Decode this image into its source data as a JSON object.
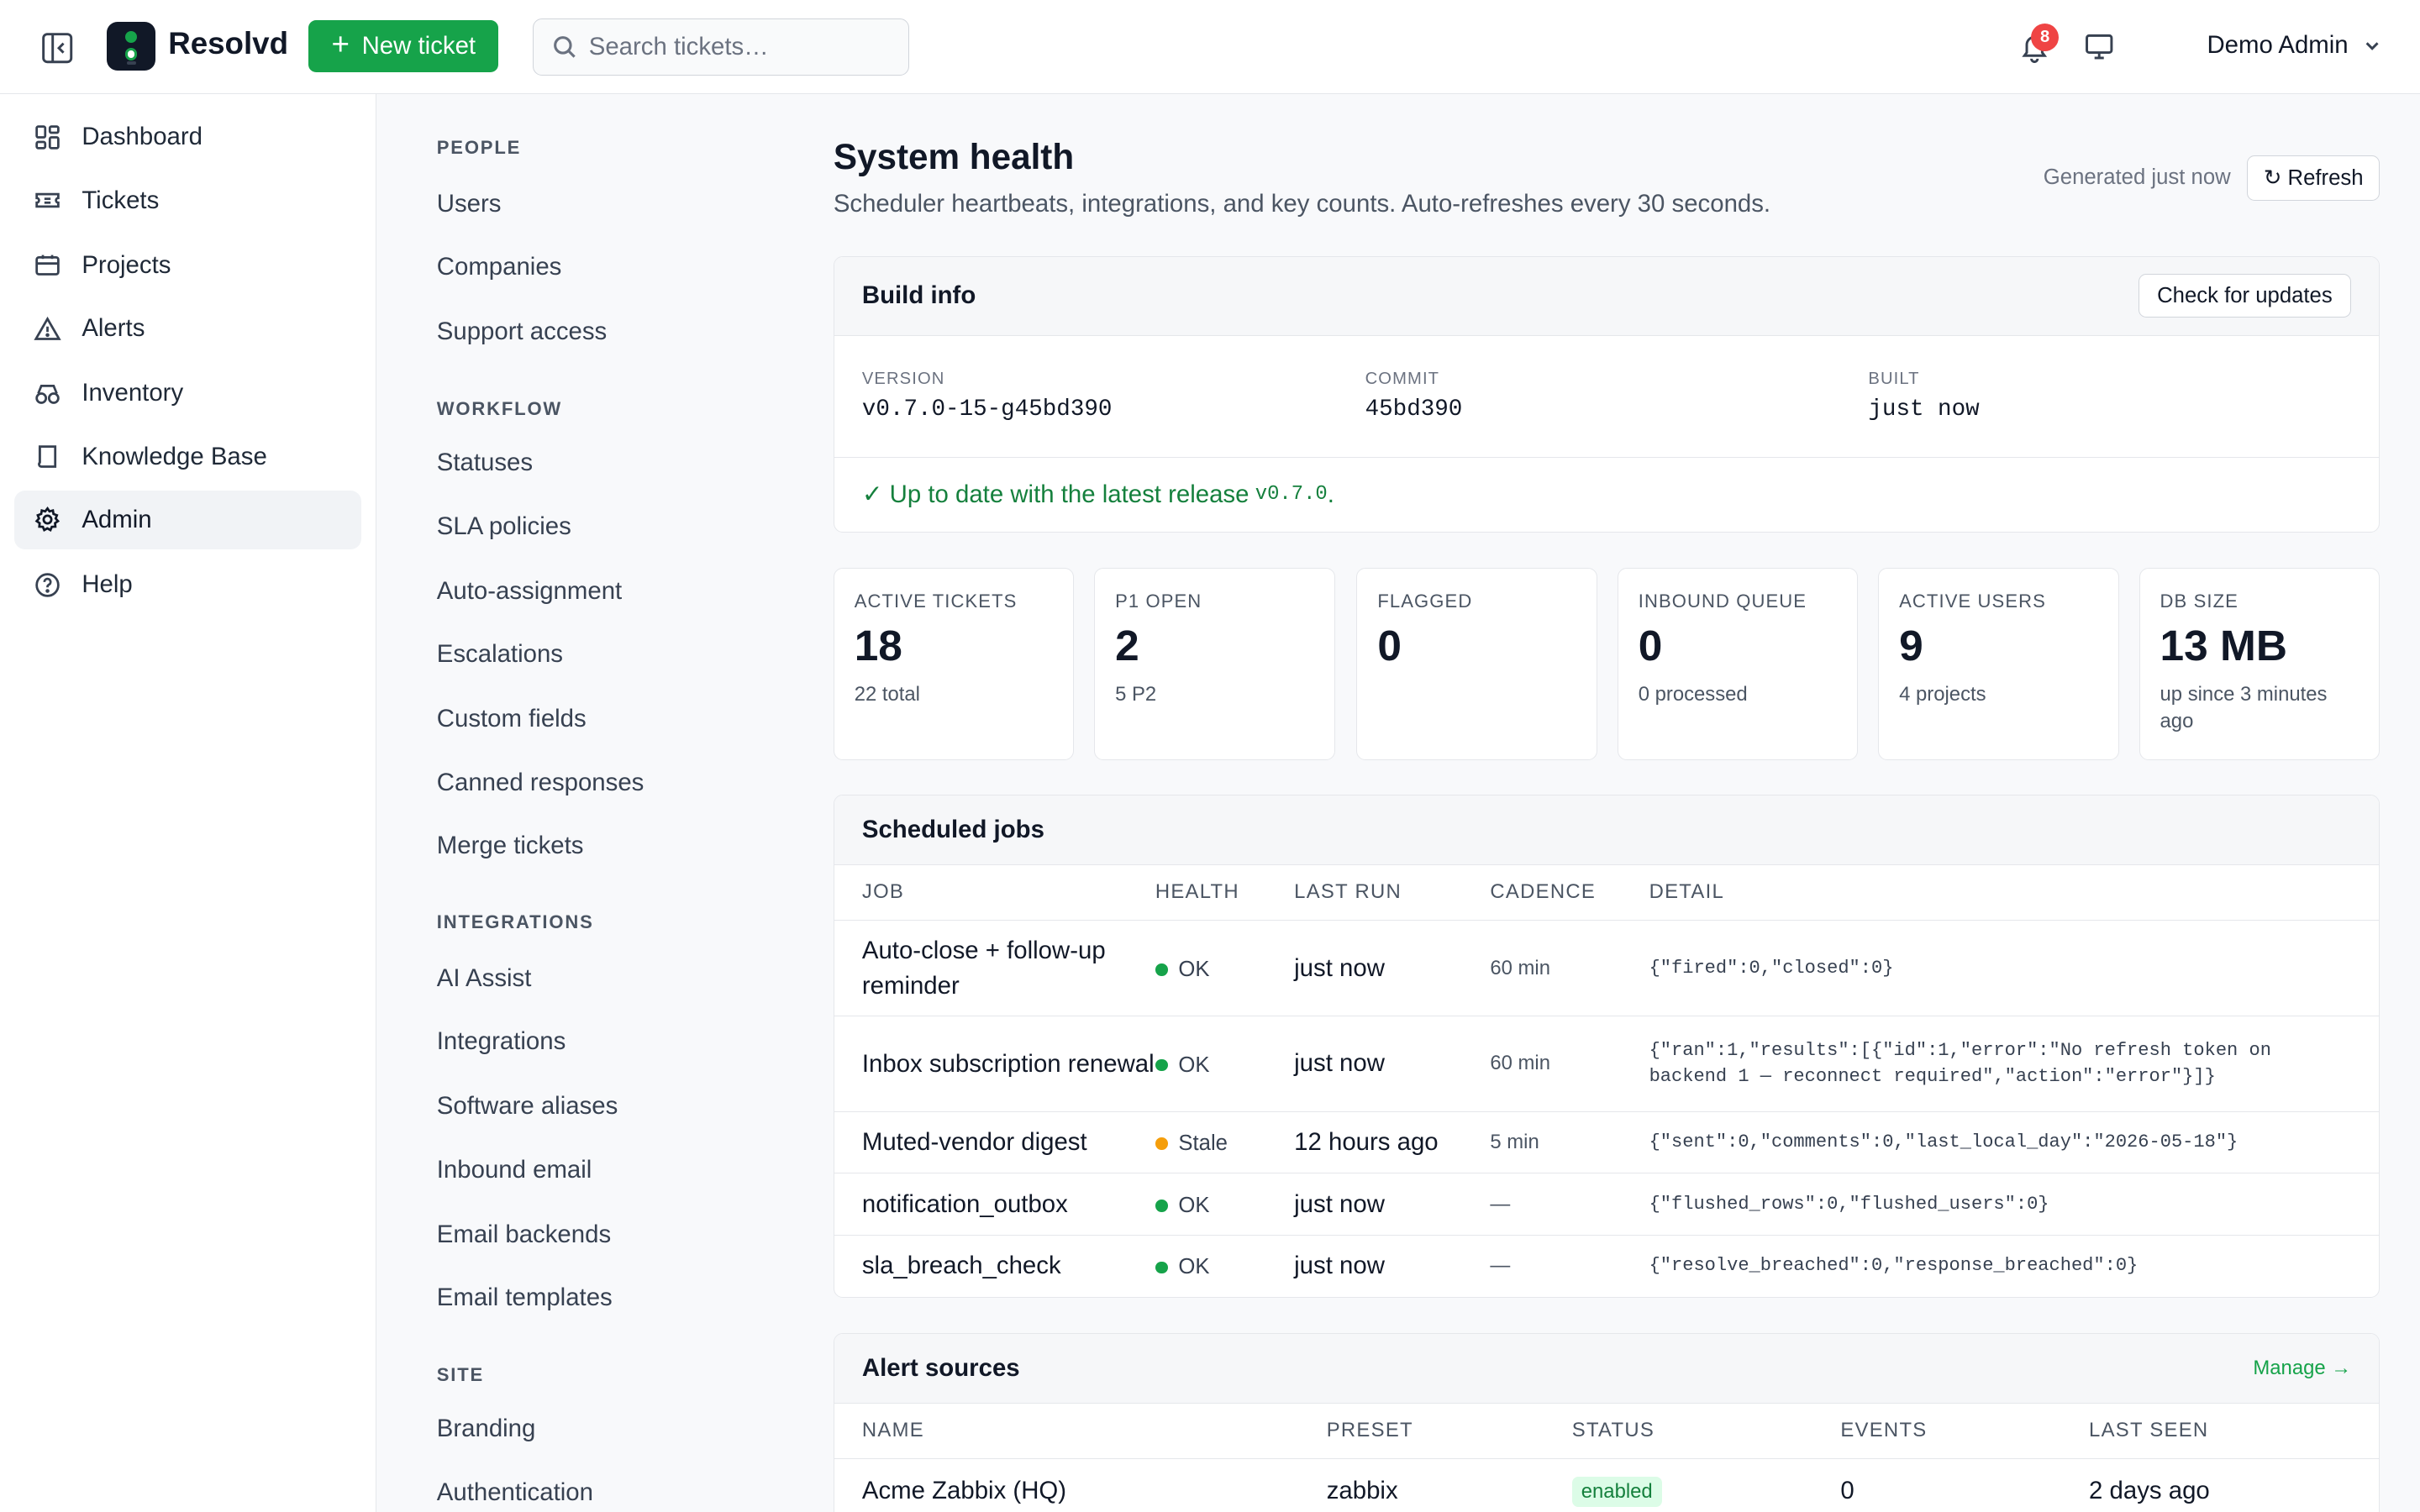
{
  "header": {
    "app_name": "Resolvd",
    "new_ticket_label": "New ticket",
    "search_placeholder": "Search tickets…",
    "notification_count": "8",
    "user_name": "Demo Admin"
  },
  "nav": [
    {
      "label": "Dashboard",
      "icon": "dashboard-icon"
    },
    {
      "label": "Tickets",
      "icon": "ticket-icon"
    },
    {
      "label": "Projects",
      "icon": "projects-icon"
    },
    {
      "label": "Alerts",
      "icon": "alert-triangle-icon"
    },
    {
      "label": "Inventory",
      "icon": "inventory-icon"
    },
    {
      "label": "Knowledge Base",
      "icon": "book-icon"
    },
    {
      "label": "Admin",
      "icon": "gear-icon",
      "active": true
    },
    {
      "label": "Help",
      "icon": "help-circle-icon"
    }
  ],
  "admin_nav": {
    "people": {
      "heading": "PEOPLE",
      "items": [
        "Users",
        "Companies",
        "Support access"
      ]
    },
    "workflow": {
      "heading": "WORKFLOW",
      "items": [
        "Statuses",
        "SLA policies",
        "Auto-assignment",
        "Escalations",
        "Custom fields",
        "Canned responses",
        "Merge tickets"
      ]
    },
    "integrations": {
      "heading": "INTEGRATIONS",
      "items": [
        "AI Assist",
        "Integrations",
        "Software aliases",
        "Inbound email",
        "Email backends",
        "Email templates"
      ]
    },
    "site": {
      "heading": "SITE",
      "items": [
        "Branding",
        "Authentication"
      ]
    }
  },
  "page": {
    "title": "System health",
    "subtitle": "Scheduler heartbeats, integrations, and key counts. Auto-refreshes every 30 seconds.",
    "generated": "Generated just now",
    "refresh_label": "↻ Refresh"
  },
  "build": {
    "title": "Build info",
    "check_label": "Check for updates",
    "version_label": "VERSION",
    "version": "v0.7.0-15-g45bd390",
    "commit_label": "COMMIT",
    "commit": "45bd390",
    "built_label": "BUILT",
    "built": "just now",
    "status_text": "✓ Up to date with the latest release",
    "status_version": "v0.7.0",
    "status_suffix": "."
  },
  "stats": [
    {
      "label": "ACTIVE TICKETS",
      "value": "18",
      "sub": "22 total"
    },
    {
      "label": "P1 OPEN",
      "value": "2",
      "sub": "5 P2"
    },
    {
      "label": "FLAGGED",
      "value": "0",
      "sub": ""
    },
    {
      "label": "INBOUND QUEUE",
      "value": "0",
      "sub": "0 processed"
    },
    {
      "label": "ACTIVE USERS",
      "value": "9",
      "sub": "4 projects"
    },
    {
      "label": "DB SIZE",
      "value": "13 MB",
      "sub": "up since 3 minutes ago"
    }
  ],
  "jobs": {
    "title": "Scheduled jobs",
    "columns": [
      "JOB",
      "HEALTH",
      "LAST RUN",
      "CADENCE",
      "DETAIL"
    ],
    "rows": [
      {
        "job": "Auto-close + follow-up reminder",
        "health": "OK",
        "last_run": "just now",
        "cadence": "60 min",
        "detail": "{\"fired\":0,\"closed\":0}"
      },
      {
        "job": "Inbox subscription renewal",
        "health": "OK",
        "last_run": "just now",
        "cadence": "60 min",
        "detail": "{\"ran\":1,\"results\":[{\"id\":1,\"error\":\"No refresh token on backend 1 — reconnect required\",\"action\":\"error\"}]}"
      },
      {
        "job": "Muted-vendor digest",
        "health": "Stale",
        "last_run": "12 hours ago",
        "cadence": "5 min",
        "detail": "{\"sent\":0,\"comments\":0,\"last_local_day\":\"2026-05-18\"}"
      },
      {
        "job": "notification_outbox",
        "health": "OK",
        "last_run": "just now",
        "cadence": "—",
        "detail": "{\"flushed_rows\":0,\"flushed_users\":0}"
      },
      {
        "job": "sla_breach_check",
        "health": "OK",
        "last_run": "just now",
        "cadence": "—",
        "detail": "{\"resolve_breached\":0,\"response_breached\":0}"
      }
    ]
  },
  "alerts": {
    "title": "Alert sources",
    "manage_label": "Manage →",
    "columns": [
      "NAME",
      "PRESET",
      "STATUS",
      "EVENTS",
      "LAST SEEN"
    ],
    "rows": [
      {
        "name": "Acme Zabbix (HQ)",
        "preset": "zabbix",
        "status": "enabled",
        "events": "0",
        "last_seen": "2 days ago"
      }
    ]
  },
  "colors": {
    "brand": "#16a34a",
    "ok": "#16a34a",
    "stale": "#f59e0b",
    "danger": "#ef4444"
  }
}
